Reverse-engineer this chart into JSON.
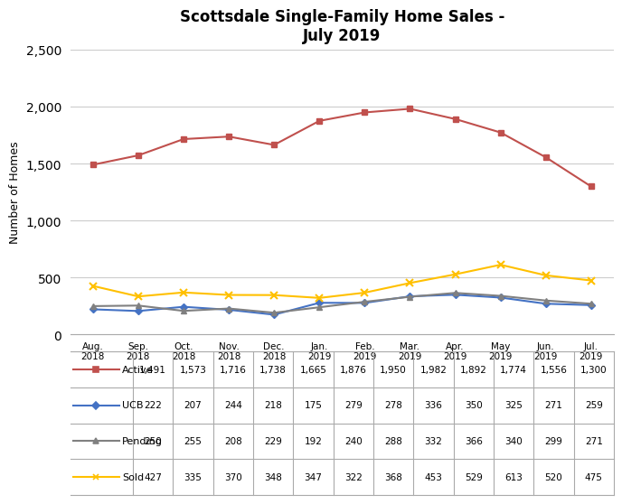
{
  "title": "Scottsdale Single-Family Home Sales -\nJuly 2019",
  "ylabel": "Number of Homes",
  "months": [
    "Aug.\n2018",
    "Sep.\n2018",
    "Oct.\n2018",
    "Nov.\n2018",
    "Dec.\n2018",
    "Jan.\n2019",
    "Feb.\n2019",
    "Mar.\n2019",
    "Apr.\n2019",
    "May\n2019",
    "Jun.\n2019",
    "Jul.\n2019"
  ],
  "active": [
    1491,
    1573,
    1716,
    1738,
    1665,
    1876,
    1950,
    1982,
    1892,
    1774,
    1556,
    1300
  ],
  "ucb": [
    222,
    207,
    244,
    218,
    175,
    279,
    278,
    336,
    350,
    325,
    271,
    259
  ],
  "pending": [
    250,
    255,
    208,
    229,
    192,
    240,
    288,
    332,
    366,
    340,
    299,
    271
  ],
  "sold": [
    427,
    335,
    370,
    348,
    347,
    322,
    368,
    453,
    529,
    613,
    520,
    475
  ],
  "active_color": "#C0504D",
  "ucb_color": "#4472C4",
  "pending_color": "#808080",
  "sold_color": "#FFC000",
  "ylim": [
    0,
    2500
  ],
  "yticks": [
    0,
    500,
    1000,
    1500,
    2000,
    2500
  ],
  "legend_labels": [
    "Active",
    "UCB",
    "Pending",
    "Sold"
  ],
  "legend_values": [
    [
      1491,
      1573,
      1716,
      1738,
      1665,
      1876,
      1950,
      1982,
      1892,
      1774,
      1556,
      1300
    ],
    [
      222,
      207,
      244,
      218,
      175,
      279,
      278,
      336,
      350,
      325,
      271,
      259
    ],
    [
      250,
      255,
      208,
      229,
      192,
      240,
      288,
      332,
      366,
      340,
      299,
      271
    ],
    [
      427,
      335,
      370,
      348,
      347,
      322,
      368,
      453,
      529,
      613,
      520,
      475
    ]
  ]
}
